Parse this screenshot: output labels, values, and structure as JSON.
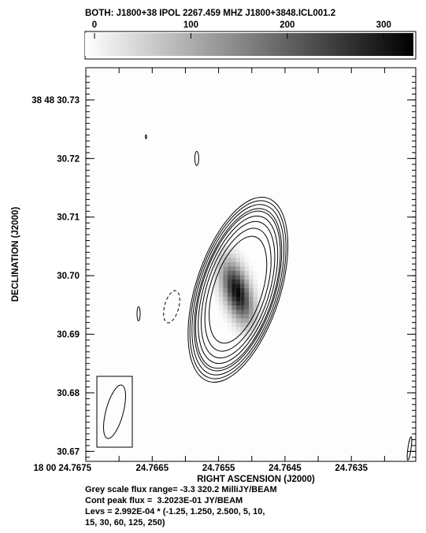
{
  "chart_data": {
    "type": "heatmap",
    "title": "BOTH: J1800+38  IPOL  2267.459 MHZ  J1800+3848.ICL001.2",
    "xlabel": "RIGHT ASCENSION (J2000)",
    "ylabel": "DECLINATION (J2000)",
    "colorbar": {
      "range": [
        0,
        330
      ],
      "ticks": [
        {
          "value": 0,
          "label": "0"
        },
        {
          "value": 100,
          "label": "100"
        },
        {
          "value": 200,
          "label": "200"
        },
        {
          "value": 300,
          "label": "300"
        }
      ]
    },
    "x_ticks": [
      {
        "value": 24.7675,
        "label": "18 00 24.7675"
      },
      {
        "value": 24.7665,
        "label": "24.7665"
      },
      {
        "value": 24.7655,
        "label": "24.7655"
      },
      {
        "value": 24.7645,
        "label": "24.7645"
      },
      {
        "value": 24.7635,
        "label": "24.7635"
      }
    ],
    "y_ticks": [
      {
        "value": 30.73,
        "label": "38 48 30.73"
      },
      {
        "value": 30.72,
        "label": "30.72"
      },
      {
        "value": 30.71,
        "label": "30.71"
      },
      {
        "value": 30.7,
        "label": "30.70"
      },
      {
        "value": 30.69,
        "label": "30.69"
      },
      {
        "value": 30.68,
        "label": "30.68"
      },
      {
        "value": 30.67,
        "label": "30.67"
      }
    ],
    "xlim": [
      24.7675,
      24.76253
    ],
    "ylim": [
      30.6683,
      30.7355
    ],
    "source": {
      "ra": 24.76522,
      "dec": 30.6972,
      "peak_mjy": 320.2,
      "contour_levels": [
        -1.25,
        1.25,
        2.5,
        5,
        10,
        15,
        30,
        60,
        125,
        250
      ],
      "level_scale_jy": 0.0002992
    },
    "beam": {
      "ra": 24.767,
      "dec": 30.6755
    }
  },
  "footer": {
    "line1": "Grey scale flux range= -3.3 320.2 MilliJY/BEAM",
    "line2": "Cont peak flux =  3.2023E-01 JY/BEAM",
    "line3": "Levs = 2.992E-04 * (-1.25, 1.250, 2.500, 5, 10,",
    "line4": "15, 30, 60, 125, 250)"
  }
}
